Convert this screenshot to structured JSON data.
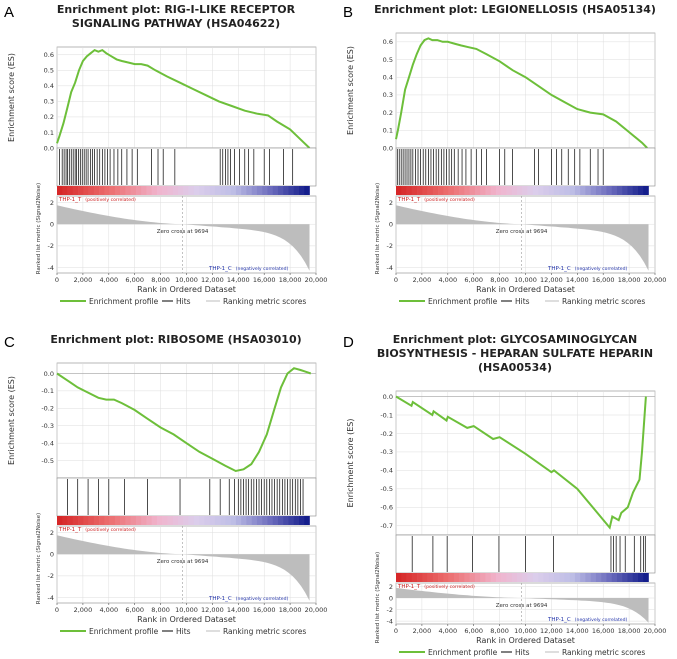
{
  "chart_data": [
    {
      "id": "A",
      "letter": "A",
      "type": "line",
      "title_lines": [
        "Enrichment plot: RIG-I-LIKE RECEPTOR",
        "SIGNALING PATHWAY (HSA04622)"
      ],
      "es_ylabel": "Enrichment score (ES)",
      "es_ylim": [
        0,
        0.65
      ],
      "es_ticks": [
        "0.6",
        "0.5",
        "0.4",
        "0.3",
        "0.2",
        "0.1",
        "0.0"
      ],
      "es_tick_values": [
        0.6,
        0.5,
        0.4,
        0.3,
        0.2,
        0.1,
        0.0
      ],
      "es_curve": [
        [
          0,
          0.03
        ],
        [
          200,
          0.08
        ],
        [
          500,
          0.16
        ],
        [
          800,
          0.26
        ],
        [
          1100,
          0.36
        ],
        [
          1400,
          0.42
        ],
        [
          1700,
          0.5
        ],
        [
          2000,
          0.56
        ],
        [
          2300,
          0.59
        ],
        [
          2600,
          0.61
        ],
        [
          2900,
          0.63
        ],
        [
          3200,
          0.62
        ],
        [
          3500,
          0.63
        ],
        [
          3800,
          0.61
        ],
        [
          4200,
          0.59
        ],
        [
          4600,
          0.57
        ],
        [
          5000,
          0.56
        ],
        [
          5500,
          0.55
        ],
        [
          6000,
          0.54
        ],
        [
          6500,
          0.54
        ],
        [
          7000,
          0.53
        ],
        [
          7600,
          0.5
        ],
        [
          8500,
          0.46
        ],
        [
          9500,
          0.42
        ],
        [
          10500,
          0.38
        ],
        [
          11500,
          0.34
        ],
        [
          12500,
          0.3
        ],
        [
          13500,
          0.27
        ],
        [
          14500,
          0.24
        ],
        [
          15500,
          0.22
        ],
        [
          16300,
          0.21
        ],
        [
          17000,
          0.17
        ],
        [
          18000,
          0.12
        ],
        [
          19000,
          0.04
        ],
        [
          19500,
          0.0
        ]
      ],
      "hits": [
        200,
        400,
        550,
        700,
        800,
        950,
        1100,
        1250,
        1400,
        1500,
        1650,
        1800,
        1950,
        2100,
        2250,
        2400,
        2600,
        2750,
        2900,
        3100,
        3300,
        3500,
        3700,
        3900,
        4100,
        4400,
        4700,
        5000,
        5400,
        5800,
        6200,
        7300,
        7800,
        8200,
        9100,
        12600,
        12800,
        13000,
        13200,
        13400,
        13700,
        14100,
        14500,
        14800,
        15200,
        16000,
        16400,
        17500,
        18200
      ],
      "ranked_ylabel": "Ranked list metric (Signal2Noise)",
      "ranked_ylim": [
        -4.5,
        2.6
      ],
      "ranked_ticks": [
        "2",
        "0",
        "-2",
        "-4"
      ],
      "ranked_tick_values": [
        2,
        0,
        -2,
        -4
      ],
      "zero_cross_label": "Zero cross at 9694",
      "zero_cross": 9694,
      "pos_label": "THP-1_T",
      "pos_label_suffix": "(positively correlated)",
      "neg_label": "THP-1_C",
      "neg_label_suffix": "(negatively correlated)",
      "xlabel": "Rank in Ordered Dataset",
      "xlim": [
        0,
        20000
      ],
      "x_ticks": [
        "0",
        "2,000",
        "4,000",
        "6,000",
        "8,000",
        "10,000",
        "12,000",
        "14,000",
        "16,000",
        "18,000",
        "20,000"
      ],
      "x_tick_values": [
        0,
        2000,
        4000,
        6000,
        8000,
        10000,
        12000,
        14000,
        16000,
        18000,
        20000
      ],
      "legend": [
        "Enrichment profile",
        "Hits",
        "Ranking metric scores"
      ]
    },
    {
      "id": "B",
      "letter": "B",
      "type": "line",
      "title_lines": [
        "Enrichment plot: LEGIONELLOSIS (HSA05134)"
      ],
      "es_ylabel": "Enrichment score (ES)",
      "es_ylim": [
        0,
        0.65
      ],
      "es_ticks": [
        "0.6",
        "0.5",
        "0.4",
        "0.3",
        "0.2",
        "0.1",
        "0.0"
      ],
      "es_tick_values": [
        0.6,
        0.5,
        0.4,
        0.3,
        0.2,
        0.1,
        0.0
      ],
      "es_curve": [
        [
          0,
          0.05
        ],
        [
          150,
          0.1
        ],
        [
          400,
          0.2
        ],
        [
          700,
          0.33
        ],
        [
          1000,
          0.4
        ],
        [
          1300,
          0.47
        ],
        [
          1600,
          0.53
        ],
        [
          1900,
          0.58
        ],
        [
          2200,
          0.61
        ],
        [
          2500,
          0.62
        ],
        [
          2800,
          0.61
        ],
        [
          3200,
          0.61
        ],
        [
          3600,
          0.6
        ],
        [
          4000,
          0.6
        ],
        [
          4500,
          0.59
        ],
        [
          5000,
          0.58
        ],
        [
          5600,
          0.57
        ],
        [
          6200,
          0.56
        ],
        [
          7000,
          0.53
        ],
        [
          8000,
          0.49
        ],
        [
          9000,
          0.44
        ],
        [
          10000,
          0.4
        ],
        [
          11000,
          0.35
        ],
        [
          12000,
          0.3
        ],
        [
          13000,
          0.26
        ],
        [
          14000,
          0.22
        ],
        [
          15000,
          0.2
        ],
        [
          16000,
          0.19
        ],
        [
          17000,
          0.15
        ],
        [
          18000,
          0.09
        ],
        [
          19000,
          0.03
        ],
        [
          19400,
          0.0
        ]
      ],
      "hits": [
        100,
        250,
        400,
        550,
        700,
        850,
        1000,
        1150,
        1300,
        1500,
        1700,
        1900,
        2100,
        2300,
        2500,
        2700,
        2900,
        3100,
        3300,
        3500,
        3700,
        3900,
        4100,
        4300,
        4500,
        4800,
        5100,
        5400,
        5800,
        6200,
        6600,
        7000,
        8000,
        8400,
        9000,
        10700,
        11000,
        12000,
        12400,
        12800,
        13300,
        13800,
        14200,
        15000,
        15600,
        16000
      ],
      "ranked_ylabel": "Ranked list metric (Signal2Noise)",
      "ranked_ylim": [
        -4.5,
        2.6
      ],
      "ranked_ticks": [
        "2",
        "0",
        "-2",
        "-4"
      ],
      "ranked_tick_values": [
        2,
        0,
        -2,
        -4
      ],
      "zero_cross_label": "Zero cross at 9694",
      "zero_cross": 9694,
      "pos_label": "THP-1_T",
      "pos_label_suffix": "(positively correlated)",
      "neg_label": "THP-1_C",
      "neg_label_suffix": "(negatively correlated)",
      "xlabel": "Rank in Ordered Dataset",
      "xlim": [
        0,
        20000
      ],
      "x_ticks": [
        "0",
        "2,000",
        "4,000",
        "6,000",
        "8,000",
        "10,000",
        "12,000",
        "14,000",
        "16,000",
        "18,000",
        "20,000"
      ],
      "x_tick_values": [
        0,
        2000,
        4000,
        6000,
        8000,
        10000,
        12000,
        14000,
        16000,
        18000,
        20000
      ],
      "legend": [
        "Enrichment profile",
        "Hits",
        "Ranking metric scores"
      ]
    },
    {
      "id": "C",
      "letter": "C",
      "type": "line",
      "title_lines": [
        "Enrichment plot: RIBOSOME (HSA03010)"
      ],
      "es_ylabel": "Enrichment score (ES)",
      "es_ylim": [
        -0.6,
        0.06
      ],
      "es_ticks": [
        "0.0",
        "-0.1",
        "-0.2",
        "-0.3",
        "-0.4",
        "-0.5"
      ],
      "es_tick_values": [
        0.0,
        -0.1,
        -0.2,
        -0.3,
        -0.4,
        -0.5
      ],
      "es_curve": [
        [
          0,
          0.0
        ],
        [
          800,
          -0.04
        ],
        [
          1600,
          -0.08
        ],
        [
          2400,
          -0.11
        ],
        [
          3200,
          -0.14
        ],
        [
          3800,
          -0.15
        ],
        [
          4400,
          -0.15
        ],
        [
          5000,
          -0.17
        ],
        [
          6000,
          -0.21
        ],
        [
          7000,
          -0.26
        ],
        [
          8000,
          -0.31
        ],
        [
          9000,
          -0.35
        ],
        [
          10000,
          -0.4
        ],
        [
          11000,
          -0.45
        ],
        [
          12000,
          -0.49
        ],
        [
          13000,
          -0.53
        ],
        [
          13800,
          -0.56
        ],
        [
          14400,
          -0.55
        ],
        [
          15000,
          -0.52
        ],
        [
          15600,
          -0.45
        ],
        [
          16200,
          -0.35
        ],
        [
          16800,
          -0.2
        ],
        [
          17300,
          -0.08
        ],
        [
          17800,
          0.0
        ],
        [
          18300,
          0.03
        ],
        [
          18800,
          0.02
        ],
        [
          19200,
          0.01
        ],
        [
          19600,
          0.0
        ]
      ],
      "hits": [
        800,
        1600,
        2400,
        3200,
        4000,
        5200,
        7000,
        9500,
        11800,
        12600,
        13300,
        13700,
        14000,
        14200,
        14400,
        14600,
        14800,
        15000,
        15200,
        15400,
        15600,
        15800,
        16000,
        16200,
        16400,
        16600,
        16800,
        17000,
        17200,
        17400,
        17600,
        17800,
        18000,
        18200,
        18400,
        18600,
        18800,
        19000
      ],
      "ranked_ylabel": "Ranked list metric (Signal2Noise)",
      "ranked_ylim": [
        -4.5,
        2.6
      ],
      "ranked_ticks": [
        "2",
        "0",
        "-2",
        "-4"
      ],
      "ranked_tick_values": [
        2,
        0,
        -2,
        -4
      ],
      "zero_cross_label": "Zero cross at 9694",
      "zero_cross": 9694,
      "pos_label": "THP-1_T",
      "pos_label_suffix": "(positively correlated)",
      "neg_label": "THP-1_C",
      "neg_label_suffix": "(negatively correlated)",
      "xlabel": "Rank in Ordered Dataset",
      "xlim": [
        0,
        20000
      ],
      "x_ticks": [
        "0",
        "2,000",
        "4,000",
        "6,000",
        "8,000",
        "10,000",
        "12,000",
        "14,000",
        "16,000",
        "18,000",
        "20,000"
      ],
      "x_tick_values": [
        0,
        2000,
        4000,
        6000,
        8000,
        10000,
        12000,
        14000,
        16000,
        18000,
        20000
      ],
      "legend": [
        "Enrichment profile",
        "Hits",
        "Ranking metric scores"
      ]
    },
    {
      "id": "D",
      "letter": "D",
      "type": "line",
      "title_lines": [
        "Enrichment plot: GLYCOSAMINOGLYCAN",
        "BIOSYNTHESIS - HEPARAN SULFATE  HEPARIN",
        "(HSA00534)"
      ],
      "es_ylabel": "Enrichment score (ES)",
      "es_ylim": [
        -0.75,
        0.03
      ],
      "es_ticks": [
        "0.0",
        "-0.1",
        "-0.2",
        "-0.3",
        "-0.4",
        "-0.5",
        "-0.6",
        "-0.7"
      ],
      "es_tick_values": [
        0.0,
        -0.1,
        -0.2,
        -0.3,
        -0.4,
        -0.5,
        -0.6,
        -0.7
      ],
      "es_curve": [
        [
          0,
          0.0
        ],
        [
          1200,
          -0.05
        ],
        [
          1300,
          -0.03
        ],
        [
          2800,
          -0.1
        ],
        [
          2900,
          -0.08
        ],
        [
          3900,
          -0.13
        ],
        [
          4000,
          -0.11
        ],
        [
          5500,
          -0.17
        ],
        [
          6000,
          -0.16
        ],
        [
          7500,
          -0.23
        ],
        [
          8000,
          -0.22
        ],
        [
          10000,
          -0.31
        ],
        [
          12000,
          -0.41
        ],
        [
          12200,
          -0.4
        ],
        [
          14000,
          -0.5
        ],
        [
          16500,
          -0.71
        ],
        [
          16700,
          -0.65
        ],
        [
          17200,
          -0.67
        ],
        [
          17400,
          -0.63
        ],
        [
          17900,
          -0.6
        ],
        [
          18300,
          -0.52
        ],
        [
          18800,
          -0.45
        ],
        [
          19000,
          -0.3
        ],
        [
          19200,
          -0.1
        ],
        [
          19300,
          0.0
        ]
      ],
      "hits": [
        1250,
        2850,
        3950,
        5900,
        7950,
        10000,
        12150,
        16600,
        16800,
        17000,
        17300,
        17700,
        18400,
        18900,
        19100,
        19250
      ],
      "ranked_ylabel": "Ranked list metric (Signal2Noise)",
      "ranked_ylim": [
        -4.5,
        2.6
      ],
      "ranked_ticks": [
        "2",
        "0",
        "-2",
        "-4"
      ],
      "ranked_tick_values": [
        2,
        0,
        -2,
        -4
      ],
      "zero_cross_label": "Zero cross at 9694",
      "zero_cross": 9694,
      "pos_label": "THP-1_T",
      "pos_label_suffix": "(positively correlated)",
      "neg_label": "THP-1_C",
      "neg_label_suffix": "(negatively correlated)",
      "xlabel": "Rank in Ordered Dataset",
      "xlim": [
        0,
        20000
      ],
      "x_ticks": [
        "0",
        "2,000",
        "4,000",
        "6,000",
        "8,000",
        "10,000",
        "12,000",
        "14,000",
        "16,000",
        "18,000",
        "20,000"
      ],
      "x_tick_values": [
        0,
        2000,
        4000,
        6000,
        8000,
        10000,
        12000,
        14000,
        16000,
        18000,
        20000
      ],
      "legend": [
        "Enrichment profile",
        "Hits",
        "Ranking metric scores"
      ]
    }
  ],
  "colors": {
    "curve": "#6dbf3a",
    "hit": "#000000",
    "metric": "#bdbdbd",
    "zero_line": "#999999",
    "pos_text": "#cc2222",
    "neg_text": "#2233aa",
    "grid": "#dddddd",
    "frame": "#888888"
  }
}
